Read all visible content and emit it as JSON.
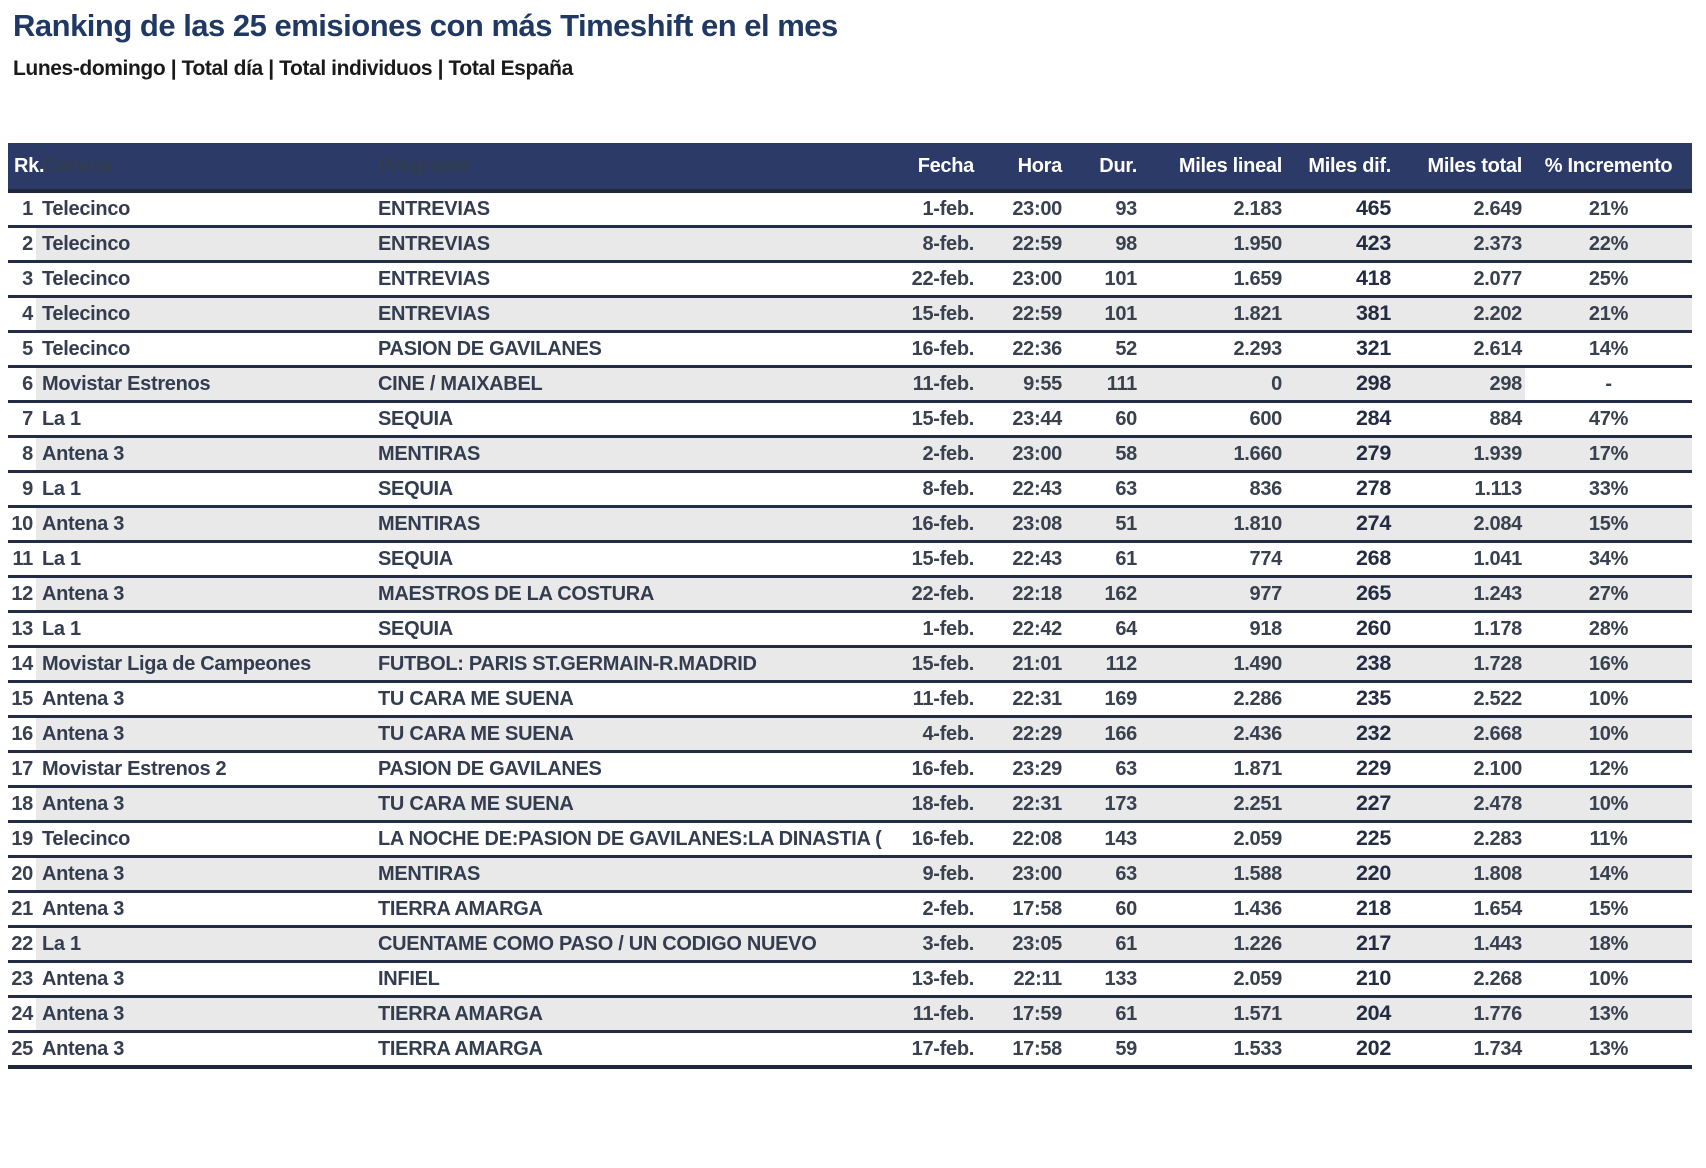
{
  "title": "Ranking de las 25 emisiones con más Timeshift en el mes",
  "subtitle": "Lunes-domingo | Total día | Total individuos | Total España",
  "colors": {
    "header_bg": "#2b3a66",
    "title_text": "#1f3864",
    "separator": "#242c44",
    "alt_row_bg": "#e9e9e9",
    "body_text": "#39414f"
  },
  "chart_data": {
    "type": "table",
    "title": "Ranking de las 25 emisiones con más Timeshift en el mes",
    "columns": [
      "Rk.",
      "Cadena",
      "Programa",
      "Fecha",
      "Hora",
      "Dur.",
      "Miles lineal",
      "Miles dif.",
      "Miles total",
      "% Incremento"
    ],
    "rows": [
      [
        "1",
        "Telecinco",
        "ENTREVIAS",
        "1-feb.",
        "23:00",
        "93",
        "2.183",
        "465",
        "2.649",
        "21%"
      ],
      [
        "2",
        "Telecinco",
        "ENTREVIAS",
        "8-feb.",
        "22:59",
        "98",
        "1.950",
        "423",
        "2.373",
        "22%"
      ],
      [
        "3",
        "Telecinco",
        "ENTREVIAS",
        "22-feb.",
        "23:00",
        "101",
        "1.659",
        "418",
        "2.077",
        "25%"
      ],
      [
        "4",
        "Telecinco",
        "ENTREVIAS",
        "15-feb.",
        "22:59",
        "101",
        "1.821",
        "381",
        "2.202",
        "21%"
      ],
      [
        "5",
        "Telecinco",
        "PASION DE GAVILANES",
        "16-feb.",
        "22:36",
        "52",
        "2.293",
        "321",
        "2.614",
        "14%"
      ],
      [
        "6",
        "Movistar Estrenos",
        "CINE / MAIXABEL",
        "11-feb.",
        "9:55",
        "111",
        "0",
        "298",
        "298",
        "-"
      ],
      [
        "7",
        "La 1",
        "SEQUIA",
        "15-feb.",
        "23:44",
        "60",
        "600",
        "284",
        "884",
        "47%"
      ],
      [
        "8",
        "Antena 3",
        "MENTIRAS",
        "2-feb.",
        "23:00",
        "58",
        "1.660",
        "279",
        "1.939",
        "17%"
      ],
      [
        "9",
        "La 1",
        "SEQUIA",
        "8-feb.",
        "22:43",
        "63",
        "836",
        "278",
        "1.113",
        "33%"
      ],
      [
        "10",
        "Antena 3",
        "MENTIRAS",
        "16-feb.",
        "23:08",
        "51",
        "1.810",
        "274",
        "2.084",
        "15%"
      ],
      [
        "11",
        "La 1",
        "SEQUIA",
        "15-feb.",
        "22:43",
        "61",
        "774",
        "268",
        "1.041",
        "34%"
      ],
      [
        "12",
        "Antena 3",
        "MAESTROS DE LA COSTURA",
        "22-feb.",
        "22:18",
        "162",
        "977",
        "265",
        "1.243",
        "27%"
      ],
      [
        "13",
        "La 1",
        "SEQUIA",
        "1-feb.",
        "22:42",
        "64",
        "918",
        "260",
        "1.178",
        "28%"
      ],
      [
        "14",
        "Movistar Liga de Campeones",
        "FUTBOL: PARIS ST.GERMAIN-R.MADRID",
        "15-feb.",
        "21:01",
        "112",
        "1.490",
        "238",
        "1.728",
        "16%"
      ],
      [
        "15",
        "Antena 3",
        "TU CARA ME SUENA",
        "11-feb.",
        "22:31",
        "169",
        "2.286",
        "235",
        "2.522",
        "10%"
      ],
      [
        "16",
        "Antena 3",
        "TU CARA ME SUENA",
        "4-feb.",
        "22:29",
        "166",
        "2.436",
        "232",
        "2.668",
        "10%"
      ],
      [
        "17",
        "Movistar Estrenos 2",
        "PASION DE GAVILANES",
        "16-feb.",
        "23:29",
        "63",
        "1.871",
        "229",
        "2.100",
        "12%"
      ],
      [
        "18",
        "Antena 3",
        "TU CARA ME SUENA",
        "18-feb.",
        "22:31",
        "173",
        "2.251",
        "227",
        "2.478",
        "10%"
      ],
      [
        "19",
        "Telecinco",
        "LA NOCHE DE:PASION DE GAVILANES:LA DINASTIA (",
        "16-feb.",
        "22:08",
        "143",
        "2.059",
        "225",
        "2.283",
        "11%"
      ],
      [
        "20",
        "Antena 3",
        "MENTIRAS",
        "9-feb.",
        "23:00",
        "63",
        "1.588",
        "220",
        "1.808",
        "14%"
      ],
      [
        "21",
        "Antena 3",
        "TIERRA AMARGA",
        "2-feb.",
        "17:58",
        "60",
        "1.436",
        "218",
        "1.654",
        "15%"
      ],
      [
        "22",
        "La 1",
        "CUENTAME COMO PASO / UN CODIGO NUEVO",
        "3-feb.",
        "23:05",
        "61",
        "1.226",
        "217",
        "1.443",
        "18%"
      ],
      [
        "23",
        "Antena 3",
        "INFIEL",
        "13-feb.",
        "22:11",
        "133",
        "2.059",
        "210",
        "2.268",
        "10%"
      ],
      [
        "24",
        "Antena 3",
        "TIERRA AMARGA",
        "11-feb.",
        "17:59",
        "61",
        "1.571",
        "204",
        "1.776",
        "13%"
      ],
      [
        "25",
        "Antena 3",
        "TIERRA AMARGA",
        "17-feb.",
        "17:58",
        "59",
        "1.533",
        "202",
        "1.734",
        "13%"
      ]
    ]
  }
}
